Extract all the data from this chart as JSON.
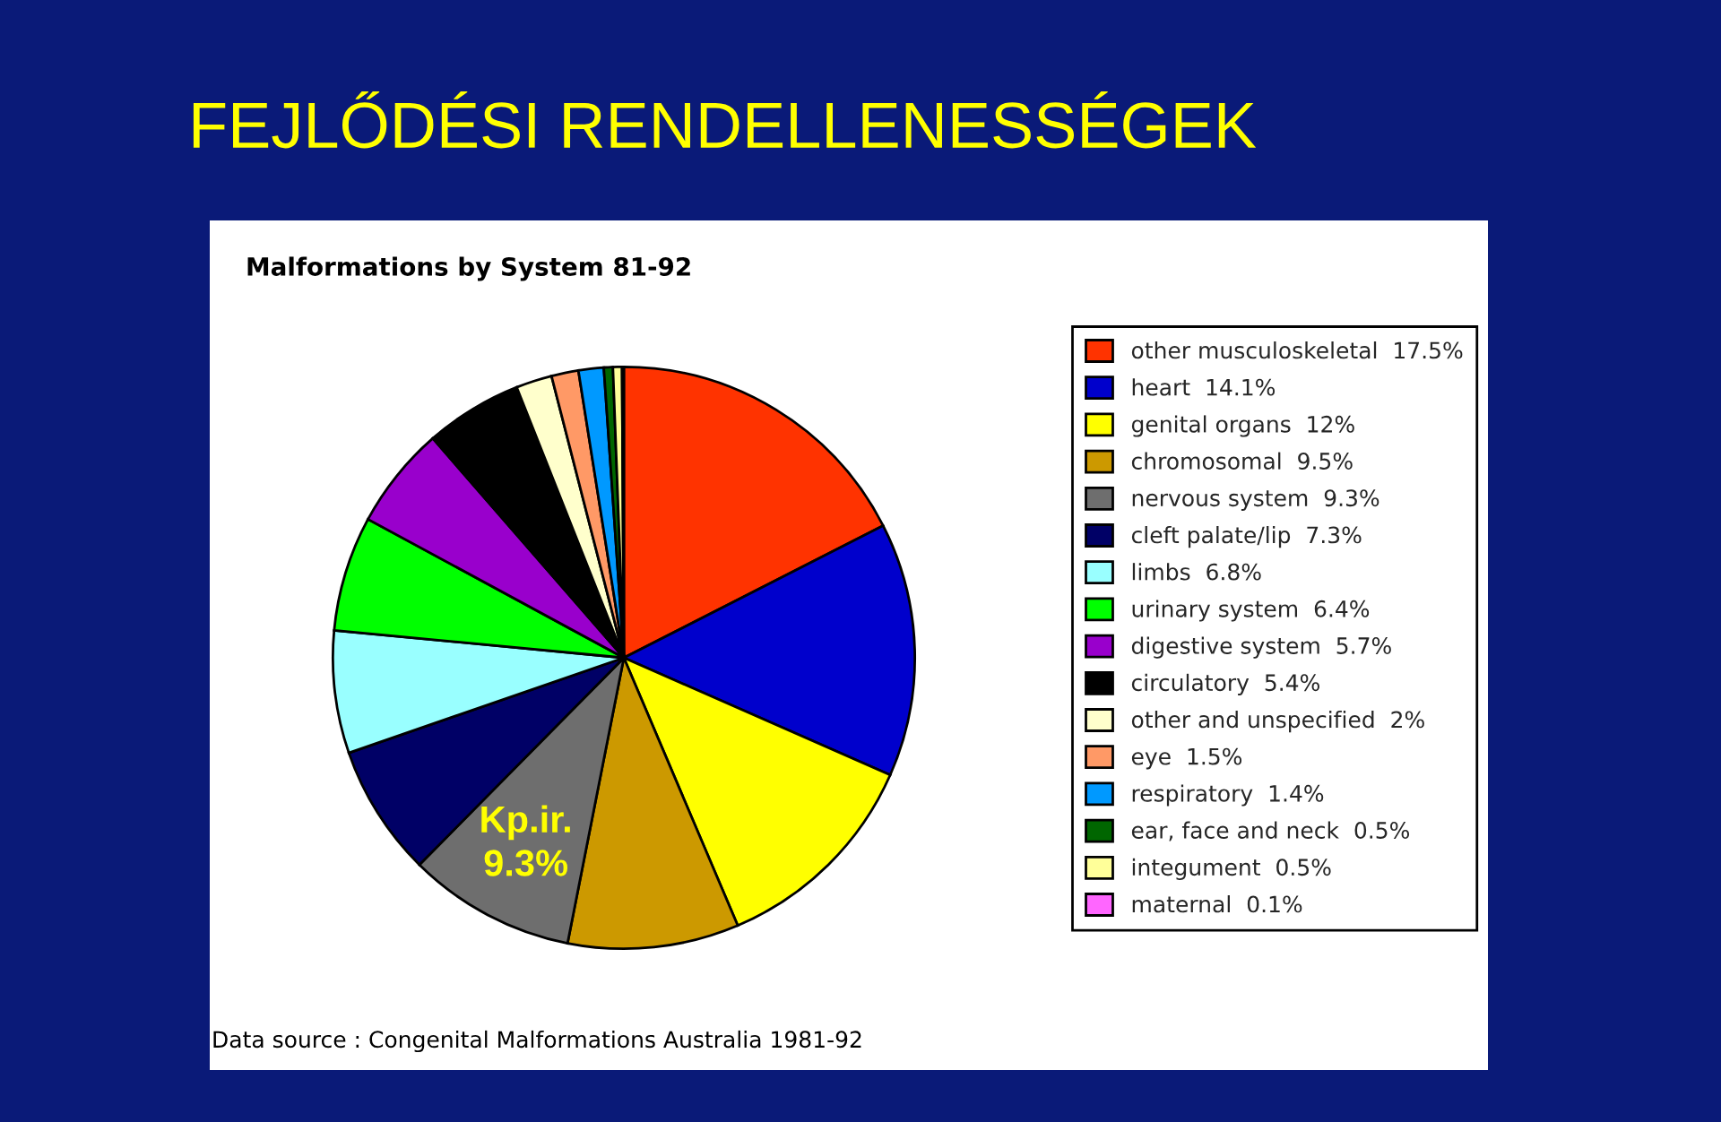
{
  "chart_data": {
    "type": "pie",
    "title": "FEJLŐDÉSI RENDELLENESSÉGEK",
    "subtitle": "Malformations by System 81-92",
    "categories": [
      "other musculoskeletal",
      "heart",
      "genital organs",
      "chromosomal",
      "nervous system",
      "cleft palate/lip",
      "limbs",
      "urinary system",
      "digestive system",
      "circulatory",
      "other and unspecified",
      "eye",
      "respiratory",
      "ear, face and neck",
      "integument",
      "maternal"
    ],
    "values": [
      17.5,
      14.1,
      12,
      9.5,
      9.3,
      7.3,
      6.8,
      6.4,
      5.7,
      5.4,
      2,
      1.5,
      1.4,
      0.5,
      0.5,
      0.1
    ],
    "value_labels": [
      "17.5%",
      "14.1%",
      "12%",
      "9.5%",
      "9.3%",
      "7.3%",
      "6.8%",
      "6.4%",
      "5.7%",
      "5.4%",
      "2%",
      "1.5%",
      "1.4%",
      "0.5%",
      "0.5%",
      "0.1%"
    ],
    "colors": [
      "#ff3300",
      "#0000cc",
      "#ffff00",
      "#cc9900",
      "#6e6e6e",
      "#000066",
      "#99ffff",
      "#00ff00",
      "#9900cc",
      "#000000",
      "#ffffcc",
      "#ff9966",
      "#0099ff",
      "#006600",
      "#ffff99",
      "#ff66ff"
    ],
    "legend": "right",
    "annotations": [
      {
        "text": "Kp.ir.",
        "x": "nervous system"
      },
      {
        "text": "9.3%",
        "x": "nervous system"
      },
      "Data source : Congenital Malformations Australia 1981-92"
    ]
  }
}
